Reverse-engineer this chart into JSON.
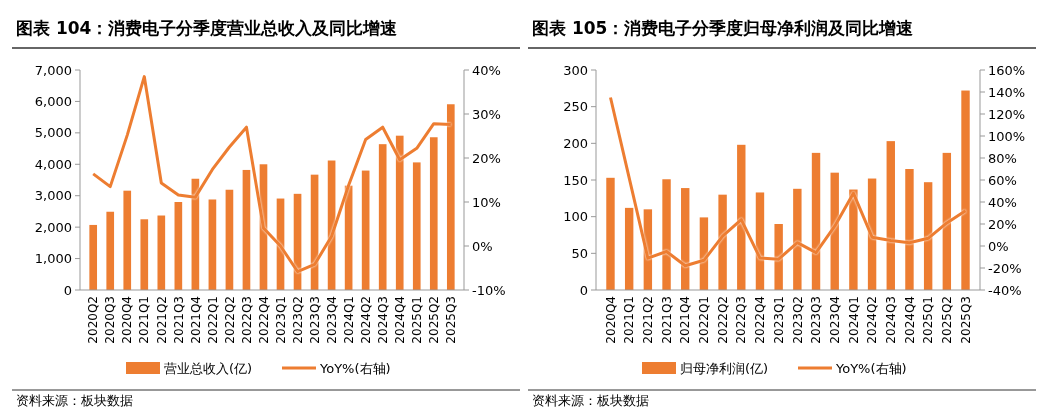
{
  "chart_data": [
    {
      "type": "bar",
      "title": "图表 104：消费电子分季度营业总收入及同比增速",
      "categories": [
        "2020Q2",
        "2020Q3",
        "2020Q4",
        "2021Q1",
        "2021Q2",
        "2021Q3",
        "2021Q4",
        "2022Q1",
        "2022Q2",
        "2022Q3",
        "2022Q4",
        "2023Q1",
        "2023Q2",
        "2023Q3",
        "2023Q4",
        "2024Q1",
        "2024Q2",
        "2024Q3",
        "2024Q4",
        "2025Q1",
        "2025Q2",
        "2025Q3"
      ],
      "series": [
        {
          "name": "营业总收入(亿)",
          "color": "#ed7d31",
          "values": [
            2070,
            2490,
            3160,
            2250,
            2370,
            2800,
            3540,
            2880,
            3190,
            3820,
            4000,
            2910,
            3060,
            3670,
            4120,
            3320,
            3800,
            4640,
            4910,
            4060,
            4860,
            5910
          ]
        },
        {
          "name": "YoY%(右轴)",
          "type": "line",
          "axis": "y2",
          "color": "#ed7d31",
          "values": [
            16.4,
            13.5,
            25.2,
            38.5,
            14.3,
            11.6,
            11.1,
            17.4,
            22.5,
            27,
            4.1,
            0,
            -5.8,
            -4.2,
            2.2,
            13.8,
            24.2,
            27,
            19.6,
            22.2,
            27.8,
            27.6
          ]
        }
      ],
      "ylim": [
        0,
        7000
      ],
      "yticks": [
        {
          "value": 0,
          "label": "0"
        },
        {
          "value": 1000,
          "label": "1,000"
        },
        {
          "value": 2000,
          "label": "2,000"
        },
        {
          "value": 3000,
          "label": "3,000"
        },
        {
          "value": 4000,
          "label": "4,000"
        },
        {
          "value": 5000,
          "label": "5,000"
        },
        {
          "value": 6000,
          "label": "6,000"
        },
        {
          "value": 7000,
          "label": "7,000"
        }
      ],
      "y2lim": [
        -10,
        40
      ],
      "y2ticks": [
        {
          "value": -10,
          "label": "-10%"
        },
        {
          "value": 0,
          "label": "0%"
        },
        {
          "value": 10,
          "label": "10%"
        },
        {
          "value": 20,
          "label": "20%"
        },
        {
          "value": 30,
          "label": "30%"
        },
        {
          "value": 40,
          "label": "40%"
        }
      ],
      "grid": false,
      "legend": "bottom",
      "marker": "none",
      "annotations": [
        "资料来源：板块数据"
      ]
    },
    {
      "type": "bar",
      "title": "图表 105：消费电子分季度归母净利润及同比增速",
      "categories": [
        "2020Q4",
        "2021Q1",
        "2021Q2",
        "2021Q3",
        "2021Q4",
        "2022Q1",
        "2022Q2",
        "2022Q3",
        "2022Q4",
        "2023Q1",
        "2023Q2",
        "2023Q3",
        "2023Q4",
        "2024Q1",
        "2024Q2",
        "2024Q3",
        "2024Q4",
        "2025Q1",
        "2025Q2",
        "2025Q3"
      ],
      "series": [
        {
          "name": "归母净利润(亿)",
          "color": "#ed7d31",
          "values": [
            153,
            112,
            110,
            151,
            139,
            99,
            130,
            198,
            133,
            90,
            138,
            187,
            160,
            137,
            152,
            203,
            165,
            147,
            187,
            272
          ]
        },
        {
          "name": "YoY%(右轴)",
          "type": "line",
          "axis": "y2",
          "color": "#ed7d31",
          "values": [
            135,
            62,
            -11,
            -5,
            -18,
            -13,
            9,
            24,
            -11,
            -12,
            3,
            -6,
            18,
            48,
            8,
            5,
            3,
            7,
            21,
            32
          ]
        }
      ],
      "ylim": [
        0,
        300
      ],
      "yticks": [
        0,
        50,
        100,
        150,
        200,
        250,
        300
      ],
      "y2lim": [
        -40,
        160
      ],
      "y2ticks": [
        {
          "value": -40,
          "label": "-40%"
        },
        {
          "value": -20,
          "label": "-20%"
        },
        {
          "value": 0,
          "label": "0%"
        },
        {
          "value": 20,
          "label": "20%"
        },
        {
          "value": 40,
          "label": "40%"
        },
        {
          "value": 60,
          "label": "60%"
        },
        {
          "value": 80,
          "label": "80%"
        },
        {
          "value": 100,
          "label": "100%"
        },
        {
          "value": 120,
          "label": "120%"
        },
        {
          "value": 140,
          "label": "140%"
        },
        {
          "value": 160,
          "label": "160%"
        }
      ],
      "grid": false,
      "legend": "bottom",
      "marker": "none",
      "annotations": [
        "资料来源：板块数据"
      ]
    }
  ]
}
